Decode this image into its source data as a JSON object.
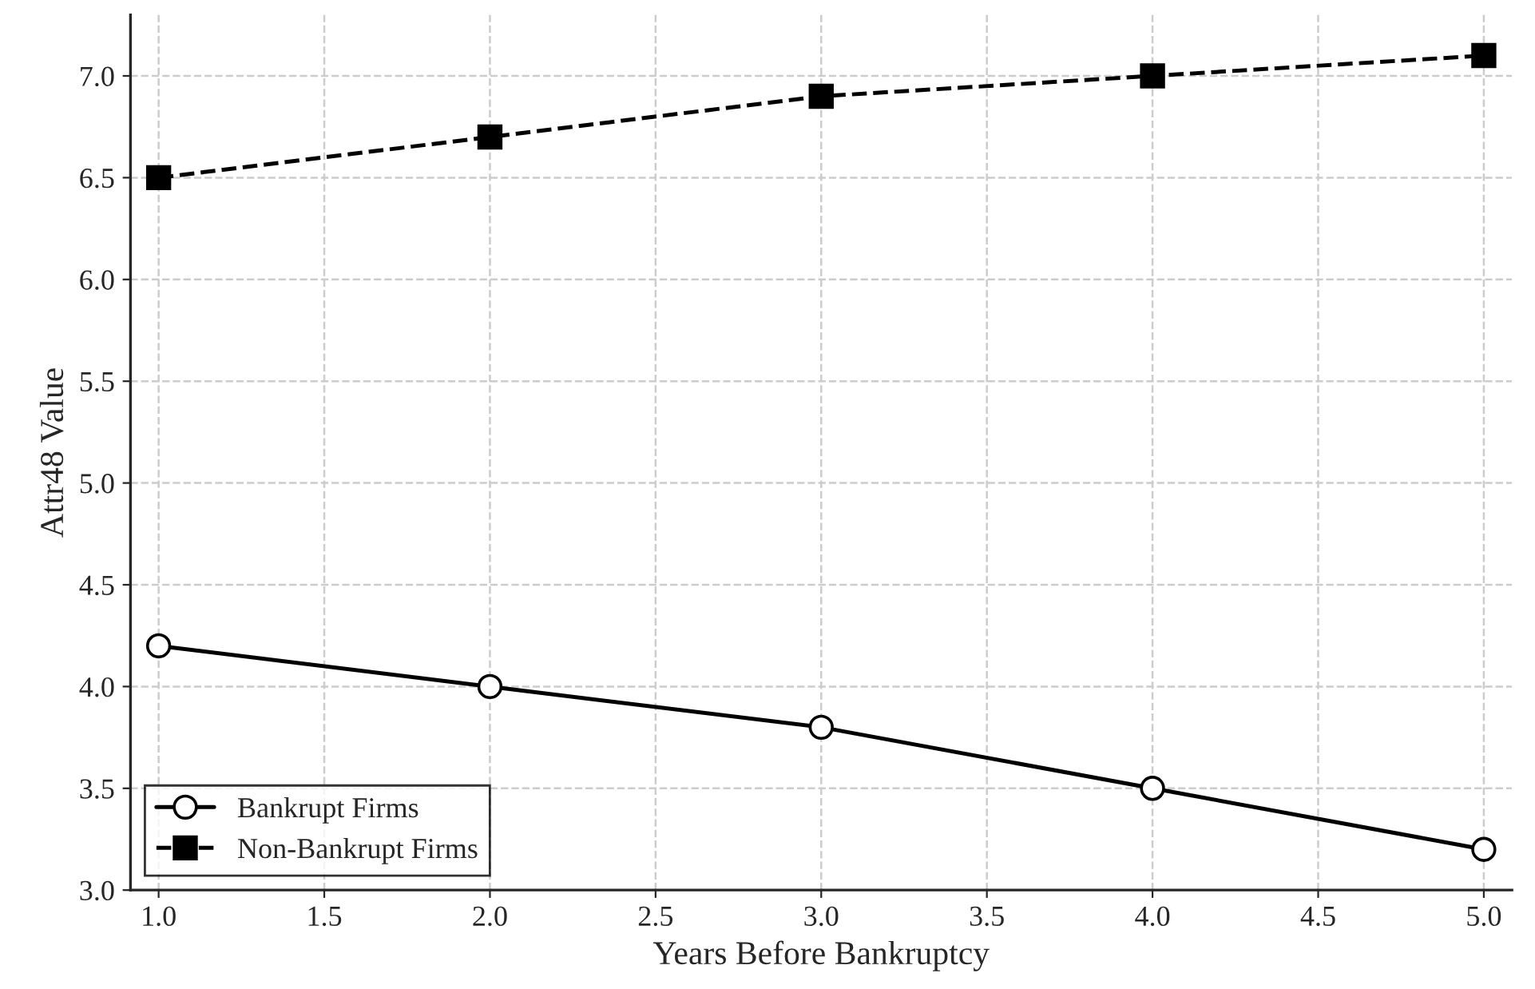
{
  "chart_data": {
    "type": "line",
    "xlabel": "Years Before Bankruptcy",
    "ylabel": "Attr48 Value",
    "x": [
      1.0,
      2.0,
      3.0,
      4.0,
      5.0
    ],
    "series": [
      {
        "name": "Bankrupt Firms",
        "color": "#000000",
        "values": [
          4.2,
          4.0,
          3.8,
          3.5,
          3.2
        ],
        "marker": "circle",
        "line_style": "solid"
      },
      {
        "name": "Non-Bankrupt Firms",
        "color": "#000000",
        "values": [
          6.5,
          6.7,
          6.9,
          7.0,
          7.1
        ],
        "marker": "square",
        "line_style": "dashed"
      }
    ],
    "xlim": [
      0.915,
      5.085
    ],
    "ylim": [
      3.0,
      7.3
    ],
    "xticks": [
      {
        "value": 1.0,
        "label": "1.0"
      },
      1.5,
      {
        "value": 2.0,
        "label": "2.0"
      },
      2.5,
      {
        "value": 3.0,
        "label": "3.0"
      },
      3.5,
      {
        "value": 4.0,
        "label": "4.0"
      },
      4.5,
      {
        "value": 5.0,
        "label": "5.0"
      }
    ],
    "yticks": [
      {
        "value": 3.0,
        "label": "3.0"
      },
      3.5,
      {
        "value": 4.0,
        "label": "4.0"
      },
      4.5,
      {
        "value": 5.0,
        "label": "5.0"
      },
      5.5,
      {
        "value": 6.0,
        "label": "6.0"
      },
      6.5,
      {
        "value": 7.0,
        "label": "7.0"
      }
    ],
    "grid": true,
    "legend": "bottom left"
  }
}
